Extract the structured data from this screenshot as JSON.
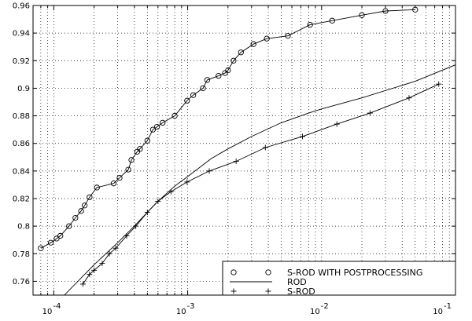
{
  "chart_data": {
    "type": "line",
    "xscale": "log",
    "xlim": [
      7e-05,
      0.1
    ],
    "ylim": [
      0.75,
      0.96
    ],
    "grid": true,
    "grid_style": "dotted",
    "legend_position": "bottom-right",
    "colors": {
      "line": "#000000",
      "grid": "#000000",
      "background": "#ffffff"
    },
    "y_ticks": [
      "0.76",
      "0.78",
      "0.8",
      "0.82",
      "0.84",
      "0.86",
      "0.88",
      "0.9",
      "0.92",
      "0.94",
      "0.96"
    ],
    "x_tick_labels": [
      {
        "base": "10",
        "exp": "-4"
      },
      {
        "base": "10",
        "exp": "-3"
      },
      {
        "base": "10",
        "exp": "-2"
      },
      {
        "base": "10",
        "exp": "-1"
      }
    ],
    "series": [
      {
        "name": "S-ROD WITH POSTPROCESSING",
        "marker": "circle",
        "line": true,
        "x": [
          8e-05,
          9.5e-05,
          0.000105,
          0.000112,
          0.00013,
          0.000145,
          0.00016,
          0.00017,
          0.000185,
          0.00021,
          0.00028,
          0.00031,
          0.00036,
          0.00038,
          0.00042,
          0.00044,
          0.0005,
          0.00055,
          0.00059,
          0.00065,
          0.0008,
          0.00099,
          0.0011,
          0.0013,
          0.0014,
          0.0017,
          0.0019,
          0.002,
          0.0022,
          0.0025,
          0.0031,
          0.0039,
          0.0056,
          0.0082,
          0.012,
          0.02,
          0.03,
          0.05
        ],
        "y": [
          0.784,
          0.788,
          0.791,
          0.793,
          0.8,
          0.806,
          0.811,
          0.815,
          0.821,
          0.828,
          0.831,
          0.835,
          0.841,
          0.848,
          0.854,
          0.856,
          0.862,
          0.87,
          0.872,
          0.875,
          0.88,
          0.891,
          0.895,
          0.9,
          0.906,
          0.909,
          0.911,
          0.913,
          0.92,
          0.926,
          0.932,
          0.936,
          0.938,
          0.946,
          0.949,
          0.953,
          0.956,
          0.957
        ]
      },
      {
        "name": "ROD",
        "marker": "none",
        "line": true,
        "x": [
          7e-05,
          0.00012,
          0.0002,
          0.0003,
          0.0004,
          0.0005,
          0.0006,
          0.0008,
          0.001,
          0.0015,
          0.002,
          0.003,
          0.005,
          0.008,
          0.01,
          0.02,
          0.05,
          0.1
        ],
        "y": [
          0.725,
          0.75,
          0.772,
          0.788,
          0.8,
          0.81,
          0.818,
          0.829,
          0.836,
          0.849,
          0.856,
          0.865,
          0.875,
          0.882,
          0.885,
          0.893,
          0.905,
          0.917
        ]
      },
      {
        "name": "S-ROD",
        "marker": "plus",
        "line": true,
        "x": [
          0.000165,
          0.000185,
          0.0002,
          0.00023,
          0.00026,
          0.00029,
          0.00035,
          0.00041,
          0.0005,
          0.0006,
          0.00075,
          0.00099,
          0.00145,
          0.0023,
          0.0038,
          0.0072,
          0.013,
          0.023,
          0.045,
          0.075
        ],
        "y": [
          0.758,
          0.765,
          0.768,
          0.773,
          0.78,
          0.784,
          0.793,
          0.8,
          0.81,
          0.818,
          0.825,
          0.832,
          0.84,
          0.847,
          0.857,
          0.865,
          0.874,
          0.882,
          0.893,
          0.903
        ]
      }
    ]
  }
}
